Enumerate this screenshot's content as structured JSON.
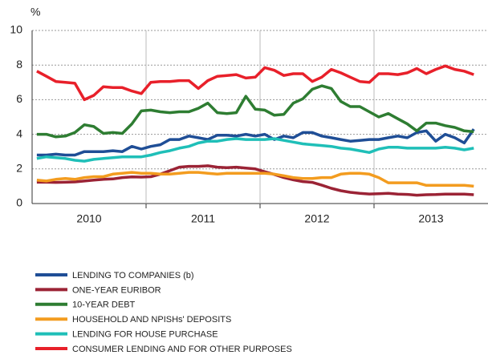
{
  "chart_data": {
    "type": "line",
    "y_unit": "%",
    "categories": [
      null,
      null,
      null,
      null,
      null,
      null,
      null,
      null,
      null,
      null,
      null,
      null,
      null,
      null,
      null,
      null,
      null,
      null,
      null,
      null,
      null,
      null,
      null,
      null,
      null,
      null,
      null,
      null,
      null,
      null,
      null,
      null,
      null,
      null,
      null,
      null,
      null,
      null,
      null,
      null,
      null,
      null,
      null,
      null,
      null,
      null,
      null
    ],
    "x_groups": [
      "2010",
      "2011",
      "2012",
      "2013"
    ],
    "ylim": [
      0,
      10
    ],
    "yticks": [
      0,
      2,
      4,
      6,
      8,
      10
    ],
    "grid": true,
    "series": [
      {
        "name": "LENDING TO COMPANIES (b)",
        "color": "#1f4e96",
        "values": [
          2.8,
          2.8,
          2.85,
          2.8,
          2.8,
          3.0,
          3.0,
          3.0,
          3.05,
          3.0,
          3.3,
          3.15,
          3.3,
          3.4,
          3.7,
          3.7,
          3.9,
          3.8,
          3.7,
          3.95,
          3.95,
          3.9,
          4.0,
          3.9,
          4.0,
          3.7,
          3.9,
          3.8,
          4.1,
          4.1,
          3.9,
          3.8,
          3.7,
          3.6,
          3.65,
          3.7,
          3.7,
          3.8,
          3.9,
          3.8,
          4.1,
          4.2,
          3.6,
          4.0,
          3.8,
          3.5,
          4.3
        ]
      },
      {
        "name": "ONE-YEAR EURIBOR",
        "color": "#9b2335",
        "values": [
          1.23,
          1.23,
          1.22,
          1.23,
          1.25,
          1.3,
          1.35,
          1.4,
          1.42,
          1.5,
          1.54,
          1.53,
          1.55,
          1.7,
          1.9,
          2.1,
          2.15,
          2.15,
          2.18,
          2.1,
          2.07,
          2.1,
          2.05,
          2.0,
          1.84,
          1.68,
          1.5,
          1.37,
          1.27,
          1.22,
          1.06,
          0.88,
          0.74,
          0.65,
          0.59,
          0.55,
          0.57,
          0.59,
          0.54,
          0.53,
          0.48,
          0.51,
          0.52,
          0.54,
          0.54,
          0.54,
          0.51
        ]
      },
      {
        "name": "10-YEAR DEBT",
        "color": "#2e7d32",
        "values": [
          4.0,
          4.0,
          3.85,
          3.9,
          4.1,
          4.55,
          4.45,
          4.05,
          4.1,
          4.05,
          4.6,
          5.35,
          5.4,
          5.3,
          5.25,
          5.3,
          5.3,
          5.5,
          5.8,
          5.25,
          5.2,
          5.25,
          6.2,
          5.45,
          5.4,
          5.1,
          5.15,
          5.8,
          6.05,
          6.6,
          6.8,
          6.65,
          5.9,
          5.6,
          5.6,
          5.3,
          5.0,
          5.2,
          4.9,
          4.6,
          4.2,
          4.65,
          4.65,
          4.5,
          4.4,
          4.2,
          4.15
        ]
      },
      {
        "name": "HOUSEHOLD AND NPISHs' DEPOSITS",
        "color": "#f39c1f",
        "values": [
          1.35,
          1.3,
          1.4,
          1.45,
          1.4,
          1.5,
          1.55,
          1.55,
          1.7,
          1.75,
          1.8,
          1.75,
          1.75,
          1.7,
          1.7,
          1.75,
          1.8,
          1.8,
          1.75,
          1.7,
          1.75,
          1.75,
          1.75,
          1.75,
          1.75,
          1.7,
          1.6,
          1.5,
          1.45,
          1.45,
          1.5,
          1.5,
          1.7,
          1.75,
          1.75,
          1.7,
          1.5,
          1.2,
          1.2,
          1.2,
          1.2,
          1.05,
          1.05,
          1.05,
          1.05,
          1.05,
          1.0
        ]
      },
      {
        "name": "LENDING FOR HOUSE PURCHASE",
        "color": "#1fbfb8",
        "values": [
          2.6,
          2.7,
          2.65,
          2.6,
          2.5,
          2.45,
          2.55,
          2.6,
          2.65,
          2.7,
          2.7,
          2.7,
          2.8,
          2.95,
          3.05,
          3.2,
          3.3,
          3.5,
          3.6,
          3.6,
          3.7,
          3.75,
          3.7,
          3.7,
          3.7,
          3.75,
          3.65,
          3.55,
          3.45,
          3.4,
          3.35,
          3.3,
          3.2,
          3.15,
          3.05,
          2.95,
          3.15,
          3.25,
          3.25,
          3.2,
          3.2,
          3.2,
          3.2,
          3.25,
          3.2,
          3.1,
          3.2
        ]
      },
      {
        "name": "CONSUMER LENDING AND FOR OTHER PURPOSES",
        "color": "#e8202a",
        "values": [
          7.65,
          7.35,
          7.05,
          7.0,
          6.95,
          6.0,
          6.25,
          6.75,
          6.7,
          6.7,
          6.5,
          6.35,
          7.0,
          7.05,
          7.05,
          7.1,
          7.1,
          6.65,
          7.1,
          7.35,
          7.4,
          7.45,
          7.25,
          7.3,
          7.85,
          7.7,
          7.4,
          7.5,
          7.5,
          7.05,
          7.3,
          7.75,
          7.55,
          7.3,
          7.05,
          7.0,
          7.5,
          7.5,
          7.45,
          7.55,
          7.8,
          7.5,
          7.75,
          7.95,
          7.75,
          7.65,
          7.45
        ]
      }
    ]
  }
}
